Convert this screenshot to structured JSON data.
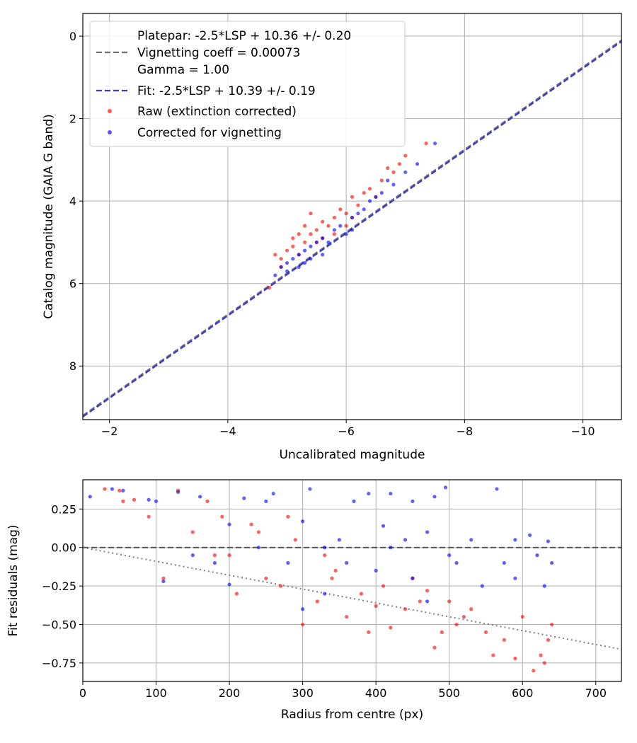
{
  "chart_data": [
    {
      "type": "scatter",
      "xlabel": "Uncalibrated magnitude",
      "ylabel": "Catalog magnitude (GAIA G band)",
      "xlim": [
        -1.55,
        -10.65
      ],
      "ylim": [
        9.3,
        -0.55
      ],
      "xticks": [
        -2,
        -4,
        -6,
        -8,
        -10
      ],
      "yticks": [
        0,
        2,
        4,
        6,
        8
      ],
      "grid": true,
      "legend_position": "upper-left",
      "legend": [
        {
          "label": "Platepar: -2.5*LSP + 10.36 +/- 0.20",
          "style": "none"
        },
        {
          "label": "Vignetting coeff = 0.00073",
          "style": "dashed",
          "color": "#707070"
        },
        {
          "label": "Gamma = 1.00",
          "style": "none"
        },
        {
          "label": "Fit: -2.5*LSP + 10.39 +/- 0.19",
          "style": "dashed",
          "color": "#3838e0"
        },
        {
          "label": "Raw (extinction corrected)",
          "style": "marker",
          "color": "#ff0000"
        },
        {
          "label": "Corrected for vignetting",
          "style": "marker",
          "color": "#0000ff"
        }
      ],
      "lines": [
        {
          "name": "Platepar",
          "intercept": 10.36,
          "slope": 1,
          "color": "#707070"
        },
        {
          "name": "Fit",
          "intercept": 10.39,
          "slope": 1,
          "color": "#3838e0"
        }
      ],
      "series": [
        {
          "name": "Raw (extinction corrected)",
          "color": "#ff0000",
          "points": [
            [
              -4.7,
              6.1
            ],
            [
              -4.8,
              5.3
            ],
            [
              -4.9,
              5.4
            ],
            [
              -5.0,
              5.2
            ],
            [
              -5.1,
              4.9
            ],
            [
              -5.1,
              5.1
            ],
            [
              -5.2,
              4.8
            ],
            [
              -5.3,
              5.0
            ],
            [
              -5.3,
              4.6
            ],
            [
              -5.4,
              4.8
            ],
            [
              -5.4,
              4.3
            ],
            [
              -5.5,
              4.7
            ],
            [
              -5.5,
              5.0
            ],
            [
              -5.6,
              4.5
            ],
            [
              -5.7,
              4.6
            ],
            [
              -5.8,
              4.4
            ],
            [
              -5.8,
              4.8
            ],
            [
              -5.9,
              4.2
            ],
            [
              -6.0,
              4.3
            ],
            [
              -6.0,
              4.6
            ],
            [
              -6.1,
              3.9
            ],
            [
              -6.2,
              4.1
            ],
            [
              -6.3,
              3.8
            ],
            [
              -6.4,
              3.7
            ],
            [
              -6.5,
              3.9
            ],
            [
              -6.6,
              3.5
            ],
            [
              -6.8,
              3.3
            ],
            [
              -6.9,
              3.1
            ],
            [
              -7.0,
              2.9
            ],
            [
              -7.35,
              2.6
            ],
            [
              -5.2,
              5.3
            ],
            [
              -4.9,
              5.6
            ],
            [
              -5.6,
              4.9
            ],
            [
              -6.1,
              4.4
            ],
            [
              -6.7,
              3.2
            ]
          ]
        },
        {
          "name": "Corrected for vignetting",
          "color": "#0000ff",
          "points": [
            [
              -4.8,
              5.8
            ],
            [
              -4.9,
              5.6
            ],
            [
              -5.0,
              5.5
            ],
            [
              -5.1,
              5.4
            ],
            [
              -5.2,
              5.3
            ],
            [
              -5.3,
              5.2
            ],
            [
              -5.3,
              5.5
            ],
            [
              -5.4,
              5.1
            ],
            [
              -5.5,
              5.0
            ],
            [
              -5.6,
              4.9
            ],
            [
              -5.7,
              5.0
            ],
            [
              -5.8,
              4.7
            ],
            [
              -5.9,
              4.6
            ],
            [
              -6.0,
              4.8
            ],
            [
              -6.1,
              4.4
            ],
            [
              -6.2,
              4.3
            ],
            [
              -6.3,
              4.2
            ],
            [
              -6.4,
              4.0
            ],
            [
              -6.5,
              3.9
            ],
            [
              -6.6,
              3.8
            ],
            [
              -6.8,
              3.6
            ],
            [
              -7.0,
              3.3
            ],
            [
              -7.2,
              3.1
            ],
            [
              -7.5,
              2.6
            ],
            [
              -5.2,
              5.6
            ],
            [
              -5.0,
              5.7
            ],
            [
              -5.6,
              5.3
            ],
            [
              -6.1,
              4.7
            ],
            [
              -6.7,
              3.5
            ],
            [
              -5.4,
              5.4
            ]
          ]
        }
      ]
    },
    {
      "type": "scatter",
      "xlabel": "Radius from centre (px)",
      "ylabel": "Fit residuals (mag)",
      "xlim": [
        0,
        735
      ],
      "ylim": [
        -0.87,
        0.44
      ],
      "xticks": [
        0,
        100,
        200,
        300,
        400,
        500,
        600,
        700
      ],
      "yticks": [
        0.25,
        0.0,
        -0.25,
        -0.5,
        -0.75
      ],
      "ytick_labels": [
        "0.25",
        "0.00",
        "−0.25",
        "−0.50",
        "−0.75"
      ],
      "grid": true,
      "lines": [
        {
          "name": "zero",
          "style": "dashed",
          "color": "#555555",
          "y0": 0.0,
          "slope": 0.0
        },
        {
          "name": "vignetting trend",
          "style": "dotted",
          "color": "#808080",
          "y0": 0.0,
          "slope": -0.0009
        }
      ],
      "series": [
        {
          "name": "Raw (extinction corrected)",
          "color": "#ff0000",
          "points": [
            [
              30,
              0.38
            ],
            [
              50,
              0.37
            ],
            [
              55,
              0.3
            ],
            [
              70,
              0.31
            ],
            [
              90,
              0.2
            ],
            [
              110,
              -0.2
            ],
            [
              130,
              0.37
            ],
            [
              150,
              0.1
            ],
            [
              170,
              0.3
            ],
            [
              190,
              0.2
            ],
            [
              200,
              -0.05
            ],
            [
              210,
              -0.3
            ],
            [
              230,
              0.15
            ],
            [
              250,
              -0.2
            ],
            [
              270,
              -0.25
            ],
            [
              290,
              0.05
            ],
            [
              300,
              -0.5
            ],
            [
              320,
              -0.35
            ],
            [
              340,
              -0.2
            ],
            [
              360,
              -0.45
            ],
            [
              380,
              -0.3
            ],
            [
              400,
              -0.38
            ],
            [
              420,
              -0.52
            ],
            [
              440,
              -0.4
            ],
            [
              450,
              -0.2
            ],
            [
              470,
              -0.28
            ],
            [
              480,
              -0.65
            ],
            [
              500,
              -0.35
            ],
            [
              510,
              -0.5
            ],
            [
              530,
              -0.4
            ],
            [
              550,
              -0.55
            ],
            [
              560,
              -0.7
            ],
            [
              575,
              -0.6
            ],
            [
              590,
              -0.72
            ],
            [
              600,
              -0.45
            ],
            [
              615,
              -0.8
            ],
            [
              625,
              -0.7
            ],
            [
              630,
              -0.75
            ],
            [
              635,
              -0.6
            ],
            [
              640,
              -0.5
            ],
            [
              345,
              -0.15
            ],
            [
              390,
              -0.55
            ],
            [
              460,
              -0.35
            ],
            [
              520,
              -0.45
            ],
            [
              180,
              -0.05
            ],
            [
              240,
              0.1
            ],
            [
              280,
              0.2
            ],
            [
              330,
              -0.05
            ],
            [
              410,
              -0.25
            ],
            [
              490,
              -0.55
            ]
          ]
        },
        {
          "name": "Corrected for vignetting",
          "color": "#0000ff",
          "points": [
            [
              10,
              0.33
            ],
            [
              40,
              0.38
            ],
            [
              55,
              0.37
            ],
            [
              90,
              0.31
            ],
            [
              100,
              0.3
            ],
            [
              110,
              -0.22
            ],
            [
              130,
              0.36
            ],
            [
              160,
              0.33
            ],
            [
              180,
              -0.1
            ],
            [
              200,
              -0.24
            ],
            [
              220,
              0.32
            ],
            [
              240,
              0.0
            ],
            [
              260,
              0.35
            ],
            [
              280,
              -0.1
            ],
            [
              300,
              0.17
            ],
            [
              310,
              0.38
            ],
            [
              330,
              -0.3
            ],
            [
              350,
              0.05
            ],
            [
              370,
              0.3
            ],
            [
              390,
              0.35
            ],
            [
              400,
              -0.15
            ],
            [
              410,
              0.14
            ],
            [
              420,
              0.35
            ],
            [
              440,
              0.05
            ],
            [
              450,
              -0.2
            ],
            [
              470,
              0.1
            ],
            [
              480,
              0.33
            ],
            [
              495,
              0.39
            ],
            [
              510,
              -0.1
            ],
            [
              530,
              0.05
            ],
            [
              545,
              -0.25
            ],
            [
              565,
              0.38
            ],
            [
              575,
              -0.1
            ],
            [
              590,
              0.05
            ],
            [
              610,
              0.08
            ],
            [
              620,
              -0.05
            ],
            [
              630,
              -0.25
            ],
            [
              635,
              0.04
            ],
            [
              640,
              -0.1
            ],
            [
              420,
              0.0
            ],
            [
              360,
              -0.1
            ],
            [
              300,
              -0.4
            ],
            [
              450,
              0.3
            ],
            [
              500,
              -0.05
            ],
            [
              250,
              0.3
            ],
            [
              200,
              0.15
            ],
            [
              150,
              -0.05
            ],
            [
              330,
              0.0
            ],
            [
              470,
              -0.35
            ],
            [
              590,
              -0.2
            ]
          ]
        }
      ]
    }
  ]
}
